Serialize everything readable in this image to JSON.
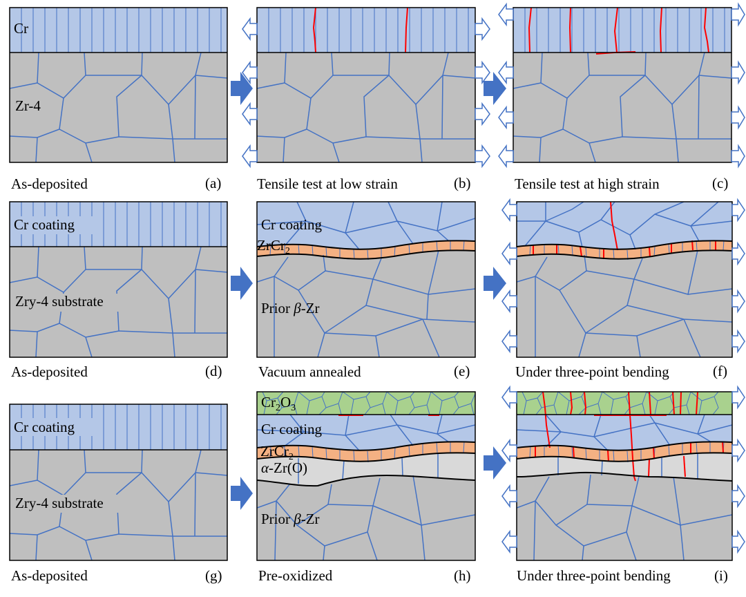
{
  "colors": {
    "cr": "#b4c7e7",
    "substrate": "#bfbfbf",
    "zrcr2": "#f4b183",
    "oxide": "#a9d18e",
    "alpha": "#d9d9d9",
    "grain_line": "#4472c4",
    "crack": "#ff0000",
    "step_arrow": "#4472c4"
  },
  "panels": [
    {
      "id": "a",
      "letter": "(a)",
      "caption": "As-deposited",
      "layers": {
        "cr": "Cr",
        "substrate": "Zr-4"
      }
    },
    {
      "id": "b",
      "letter": "(b)",
      "caption": "Tensile test at low strain"
    },
    {
      "id": "c",
      "letter": "(c)",
      "caption": "Tensile test at high strain"
    },
    {
      "id": "d",
      "letter": "(d)",
      "caption": "As-deposited",
      "layers": {
        "cr": "Cr coating",
        "substrate": "Zry-4 substrate"
      }
    },
    {
      "id": "e",
      "letter": "(e)",
      "caption": "Vacuum annealed",
      "layers": {
        "cr": "Cr coating",
        "zrcr2": "ZrCr",
        "zrcr2_sub": "2",
        "substrate_pre": "Prior ",
        "substrate_greek": "β",
        "substrate_post": "-Zr"
      }
    },
    {
      "id": "f",
      "letter": "(f)",
      "caption": "Under three-point bending"
    },
    {
      "id": "g",
      "letter": "(g)",
      "caption": "As-deposited",
      "layers": {
        "cr": "Cr coating",
        "substrate": "Zry-4 substrate"
      }
    },
    {
      "id": "h",
      "letter": "(h)",
      "caption": "Pre-oxidized",
      "layers": {
        "oxide_a": "Cr",
        "oxide_sub1": "2",
        "oxide_b": "O",
        "oxide_sub2": "3",
        "cr": "Cr coating",
        "zrcr2": "ZrCr",
        "zrcr2_sub": "2",
        "alpha_greek": "α",
        "alpha_post": "-Zr(O)",
        "substrate_pre": "Prior ",
        "substrate_greek": "β",
        "substrate_post": "-Zr"
      }
    },
    {
      "id": "i",
      "letter": "(i)",
      "caption": "Under three-point bending"
    }
  ]
}
